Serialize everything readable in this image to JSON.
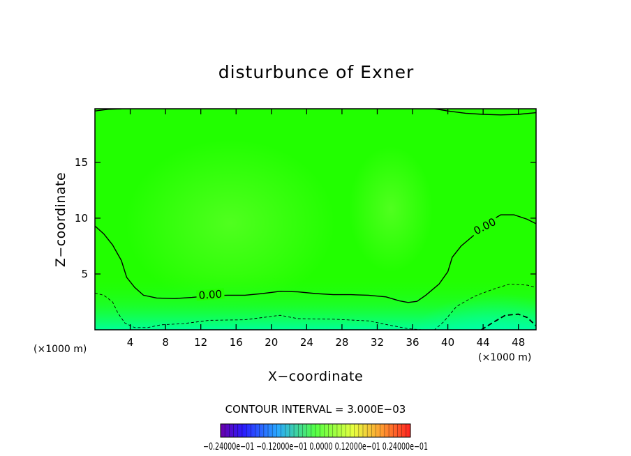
{
  "chart_data": {
    "type": "contour",
    "title": "disturbunce of Exner",
    "xlabel": "X−coordinate",
    "ylabel": "Z−coordinate",
    "x_unit_left": "(×1000 m)",
    "x_unit_right": "(×1000 m)",
    "xlim": [
      0,
      50
    ],
    "ylim": [
      0,
      19.8
    ],
    "x_ticks": [
      4,
      8,
      12,
      16,
      20,
      24,
      28,
      32,
      36,
      40,
      44,
      48
    ],
    "y_ticks": [
      5,
      10,
      15
    ],
    "contour_interval_text": "CONTOUR INTERVAL = 3.000E−03",
    "contour_label_value": "0.00",
    "zero_contours": [
      {
        "name": "zero-contour-lower",
        "points": [
          [
            0,
            9.3
          ],
          [
            1,
            8.6
          ],
          [
            2,
            7.6
          ],
          [
            3,
            6.2
          ],
          [
            3.6,
            4.7
          ],
          [
            4.5,
            3.8
          ],
          [
            5.5,
            3.1
          ],
          [
            7,
            2.85
          ],
          [
            9,
            2.8
          ],
          [
            11,
            2.9
          ],
          [
            13,
            3.05
          ],
          [
            15,
            3.1
          ],
          [
            17,
            3.1
          ],
          [
            19,
            3.25
          ],
          [
            21,
            3.45
          ],
          [
            23,
            3.4
          ],
          [
            25,
            3.25
          ],
          [
            27,
            3.15
          ],
          [
            29,
            3.15
          ],
          [
            31,
            3.1
          ],
          [
            33,
            2.95
          ],
          [
            34.5,
            2.6
          ],
          [
            35.5,
            2.45
          ],
          [
            36.5,
            2.55
          ],
          [
            37.5,
            3.1
          ],
          [
            39,
            4.1
          ],
          [
            40,
            5.2
          ],
          [
            40.5,
            6.5
          ],
          [
            41.5,
            7.5
          ],
          [
            43,
            8.5
          ],
          [
            44.5,
            9.6
          ],
          [
            46,
            10.3
          ],
          [
            47.5,
            10.3
          ],
          [
            49,
            9.9
          ],
          [
            50,
            9.5
          ]
        ]
      },
      {
        "name": "zero-contour-top-left",
        "points": [
          [
            0,
            19.6
          ],
          [
            1.5,
            19.75
          ],
          [
            3,
            19.8
          ]
        ]
      },
      {
        "name": "zero-contour-top-right",
        "points": [
          [
            38.5,
            19.8
          ],
          [
            40,
            19.6
          ],
          [
            42,
            19.4
          ],
          [
            44,
            19.3
          ],
          [
            46,
            19.25
          ],
          [
            48,
            19.3
          ],
          [
            50,
            19.45
          ]
        ]
      }
    ],
    "negative_contours": [
      {
        "name": "neg-contour-1",
        "points": [
          [
            0,
            3.3
          ],
          [
            1,
            3.1
          ],
          [
            2,
            2.5
          ],
          [
            2.6,
            1.5
          ],
          [
            3.4,
            0.6
          ],
          [
            4.5,
            0.2
          ],
          [
            6,
            0.2
          ],
          [
            7.5,
            0.45
          ],
          [
            10,
            0.55
          ],
          [
            13,
            0.85
          ],
          [
            17,
            0.9
          ],
          [
            21,
            1.3
          ],
          [
            23,
            1.0
          ],
          [
            27,
            0.95
          ],
          [
            31,
            0.8
          ],
          [
            33.5,
            0.4
          ],
          [
            35.5,
            0.1
          ],
          [
            37,
            0
          ],
          [
            38.5,
            0
          ],
          [
            39.5,
            0.7
          ],
          [
            41,
            2.1
          ],
          [
            43,
            3.0
          ],
          [
            45,
            3.6
          ],
          [
            47,
            4.1
          ],
          [
            49,
            4.0
          ],
          [
            50,
            3.8
          ]
        ]
      },
      {
        "name": "neg-contour-2",
        "points": [
          [
            43.8,
            0
          ],
          [
            45,
            0.6
          ],
          [
            46.5,
            1.3
          ],
          [
            48,
            1.4
          ],
          [
            49,
            1.1
          ],
          [
            50,
            0.35
          ]
        ]
      }
    ],
    "colorbar_labels": "−0.24000e−01  −0.12000e−01  0.0000  0.12000e−01  0.24000e−01",
    "colors": {
      "field_main": "#22ff00",
      "field_light": "#44ff11",
      "field_low": "#11ff66",
      "field_low_deep": "#00ffa0"
    }
  }
}
